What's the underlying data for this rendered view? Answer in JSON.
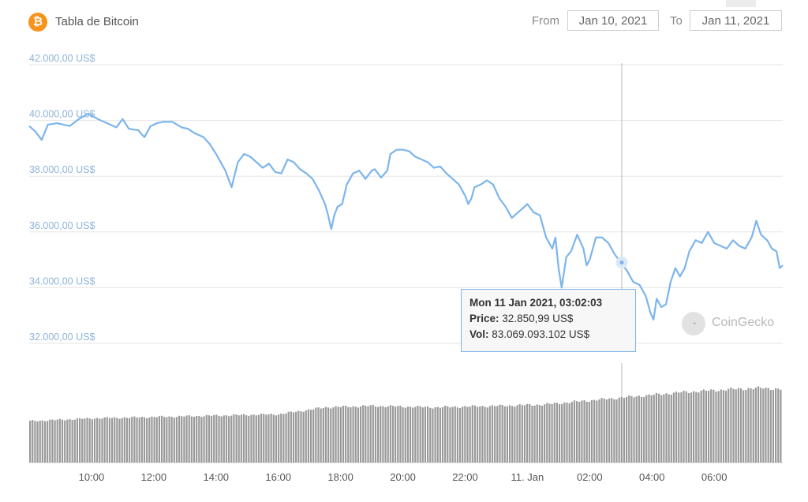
{
  "header": {
    "title": "Tabla de Bitcoin",
    "logo_icon": "bitcoin-icon",
    "from_label": "From",
    "from_value": "Jan 10, 2021",
    "to_label": "To",
    "to_value": "Jan 11, 2021"
  },
  "tooltip": {
    "time": "Mon 11 Jan 2021, 03:02:03",
    "price_label": "Price:",
    "price_value": "32.850,99 US$",
    "vol_label": "Vol:",
    "vol_value": "83.069.093.102 US$"
  },
  "watermark": "CoinGecko",
  "colors": {
    "line": "#7cb5ec",
    "volume": "#999999",
    "grid": "#e6e6e6",
    "brand": "#f7931a"
  },
  "chart_data": {
    "type": "line",
    "x_range": [
      "2021-01-10 08:00",
      "2021-01-11 07:10"
    ],
    "ylim": [
      32000,
      42000
    ],
    "y_ticks": [
      "42.000,00 US$",
      "40.000,00 US$",
      "38.000,00 US$",
      "36.000,00 US$",
      "34.000,00 US$",
      "32.000,00 US$"
    ],
    "y_tick_values": [
      42000,
      40000,
      38000,
      36000,
      34000,
      32000
    ],
    "x_ticks": [
      "10:00",
      "12:00",
      "14:00",
      "16:00",
      "18:00",
      "20:00",
      "22:00",
      "11. Jan",
      "02:00",
      "04:00",
      "06:00"
    ],
    "x_tick_hours": [
      10,
      12,
      14,
      16,
      18,
      20,
      22,
      24,
      26,
      28,
      30
    ],
    "crosshair_hour": 27.03,
    "series": [
      {
        "kind": "price",
        "points": [
          [
            8.0,
            39800
          ],
          [
            8.2,
            39600
          ],
          [
            8.4,
            39300
          ],
          [
            8.6,
            39850
          ],
          [
            8.9,
            39900
          ],
          [
            9.3,
            39800
          ],
          [
            9.6,
            40050
          ],
          [
            9.9,
            40250
          ],
          [
            10.2,
            40050
          ],
          [
            10.5,
            39900
          ],
          [
            10.8,
            39750
          ],
          [
            11.0,
            40050
          ],
          [
            11.2,
            39700
          ],
          [
            11.5,
            39650
          ],
          [
            11.7,
            39400
          ],
          [
            11.9,
            39800
          ],
          [
            12.1,
            39900
          ],
          [
            12.3,
            39950
          ],
          [
            12.6,
            39950
          ],
          [
            12.9,
            39750
          ],
          [
            13.1,
            39700
          ],
          [
            13.3,
            39550
          ],
          [
            13.6,
            39400
          ],
          [
            13.8,
            39150
          ],
          [
            14.0,
            38800
          ],
          [
            14.3,
            38200
          ],
          [
            14.5,
            37600
          ],
          [
            14.7,
            38500
          ],
          [
            14.9,
            38800
          ],
          [
            15.1,
            38700
          ],
          [
            15.3,
            38500
          ],
          [
            15.5,
            38300
          ],
          [
            15.7,
            38450
          ],
          [
            15.9,
            38150
          ],
          [
            16.1,
            38100
          ],
          [
            16.3,
            38600
          ],
          [
            16.5,
            38500
          ],
          [
            16.7,
            38250
          ],
          [
            16.9,
            38100
          ],
          [
            17.1,
            37900
          ],
          [
            17.3,
            37500
          ],
          [
            17.5,
            37000
          ],
          [
            17.6,
            36600
          ],
          [
            17.7,
            36100
          ],
          [
            17.8,
            36600
          ],
          [
            17.9,
            36900
          ],
          [
            18.05,
            37000
          ],
          [
            18.2,
            37700
          ],
          [
            18.4,
            38100
          ],
          [
            18.6,
            38200
          ],
          [
            18.8,
            37900
          ],
          [
            19.0,
            38200
          ],
          [
            19.1,
            38250
          ],
          [
            19.3,
            37950
          ],
          [
            19.5,
            38200
          ],
          [
            19.6,
            38800
          ],
          [
            19.8,
            38950
          ],
          [
            20.0,
            38950
          ],
          [
            20.2,
            38900
          ],
          [
            20.4,
            38700
          ],
          [
            20.6,
            38600
          ],
          [
            20.8,
            38500
          ],
          [
            21.0,
            38300
          ],
          [
            21.2,
            38350
          ],
          [
            21.4,
            38100
          ],
          [
            21.6,
            37900
          ],
          [
            21.8,
            37700
          ],
          [
            22.0,
            37300
          ],
          [
            22.1,
            37000
          ],
          [
            22.2,
            37200
          ],
          [
            22.3,
            37600
          ],
          [
            22.5,
            37700
          ],
          [
            22.7,
            37850
          ],
          [
            22.9,
            37700
          ],
          [
            23.1,
            37200
          ],
          [
            23.3,
            36900
          ],
          [
            23.5,
            36500
          ],
          [
            23.6,
            36600
          ],
          [
            23.8,
            36800
          ],
          [
            24.0,
            37000
          ],
          [
            24.2,
            36700
          ],
          [
            24.4,
            36600
          ],
          [
            24.6,
            35800
          ],
          [
            24.8,
            35400
          ],
          [
            24.9,
            35800
          ],
          [
            25.0,
            34700
          ],
          [
            25.1,
            34000
          ],
          [
            25.25,
            35100
          ],
          [
            25.4,
            35300
          ],
          [
            25.6,
            35900
          ],
          [
            25.8,
            35400
          ],
          [
            25.9,
            34800
          ],
          [
            26.0,
            35000
          ],
          [
            26.2,
            35800
          ],
          [
            26.4,
            35800
          ],
          [
            26.6,
            35600
          ],
          [
            26.8,
            35200
          ],
          [
            27.0,
            34900
          ],
          [
            27.2,
            34600
          ],
          [
            27.4,
            34200
          ],
          [
            27.6,
            34100
          ],
          [
            27.8,
            33700
          ],
          [
            27.95,
            33100
          ],
          [
            28.05,
            32850
          ],
          [
            28.15,
            33600
          ],
          [
            28.3,
            33300
          ],
          [
            28.45,
            33400
          ],
          [
            28.6,
            34200
          ],
          [
            28.75,
            34700
          ],
          [
            28.9,
            34400
          ],
          [
            29.05,
            34700
          ],
          [
            29.2,
            35300
          ],
          [
            29.4,
            35700
          ],
          [
            29.6,
            35600
          ],
          [
            29.8,
            36000
          ],
          [
            30.0,
            35600
          ],
          [
            30.2,
            35500
          ],
          [
            30.4,
            35400
          ],
          [
            30.6,
            35700
          ],
          [
            30.8,
            35500
          ],
          [
            31.0,
            35400
          ],
          [
            31.2,
            35800
          ],
          [
            31.35,
            36400
          ],
          [
            31.5,
            35900
          ],
          [
            31.7,
            35700
          ],
          [
            31.85,
            35400
          ],
          [
            32.0,
            35300
          ],
          [
            32.1,
            34700
          ],
          [
            32.2,
            34800
          ]
        ]
      },
      {
        "kind": "volume",
        "levels": [
          [
            8.0,
            0.3
          ],
          [
            10.0,
            0.32
          ],
          [
            12.0,
            0.33
          ],
          [
            14.0,
            0.34
          ],
          [
            16.0,
            0.35
          ],
          [
            17.5,
            0.4
          ],
          [
            19.0,
            0.41
          ],
          [
            21.0,
            0.4
          ],
          [
            23.0,
            0.41
          ],
          [
            24.5,
            0.42
          ],
          [
            26.0,
            0.45
          ],
          [
            27.5,
            0.48
          ],
          [
            29.0,
            0.51
          ],
          [
            30.5,
            0.53
          ],
          [
            31.5,
            0.54
          ],
          [
            32.2,
            0.53
          ]
        ]
      }
    ]
  }
}
